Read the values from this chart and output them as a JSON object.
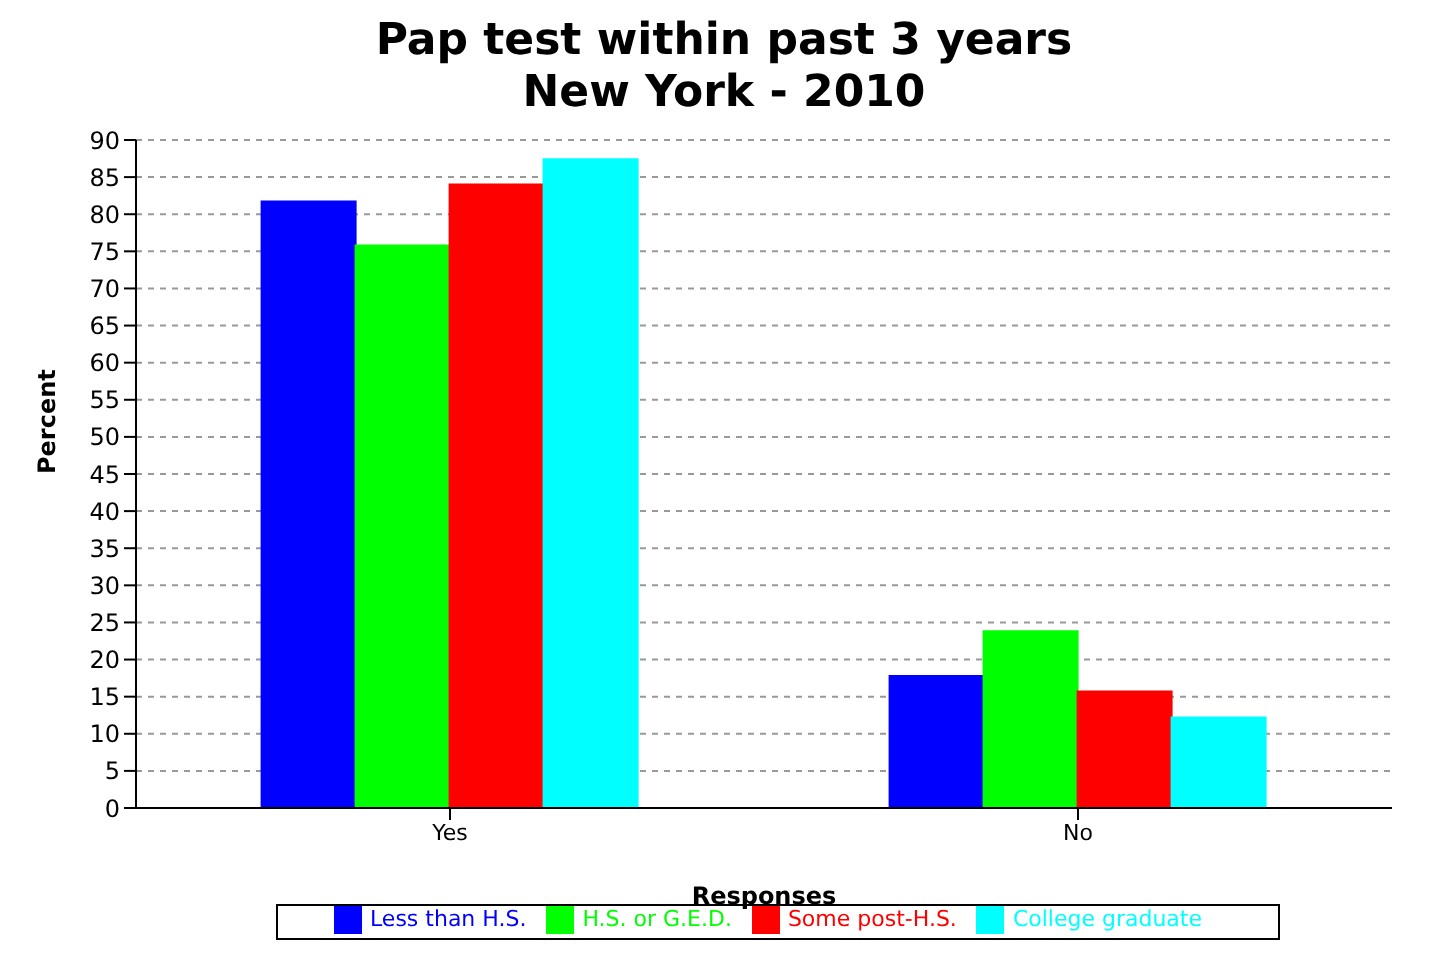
{
  "chart_data": {
    "type": "bar",
    "title": "Pap test within past 3 years",
    "subtitle": "New York - 2010",
    "xlabel": "Responses",
    "ylabel": "Percent",
    "categories": [
      "Yes",
      "No"
    ],
    "series": [
      {
        "name": "Less than H.S.",
        "color": "#0000ff",
        "values": [
          81.7,
          17.8
        ]
      },
      {
        "name": "H.S. or G.E.D.",
        "color": "#00ff00",
        "values": [
          75.8,
          23.8
        ]
      },
      {
        "name": "Some post-H.S.",
        "color": "#ff0000",
        "values": [
          84,
          15.7
        ]
      },
      {
        "name": "College graduate",
        "color": "#00ffff",
        "values": [
          87.4,
          12.2
        ]
      }
    ],
    "ylim": [
      0,
      90
    ],
    "yticks": [
      0,
      5,
      10,
      15,
      20,
      25,
      30,
      35,
      40,
      45,
      50,
      55,
      60,
      65,
      70,
      75,
      80,
      85,
      90
    ],
    "grid": "y",
    "legend": "bottom"
  }
}
